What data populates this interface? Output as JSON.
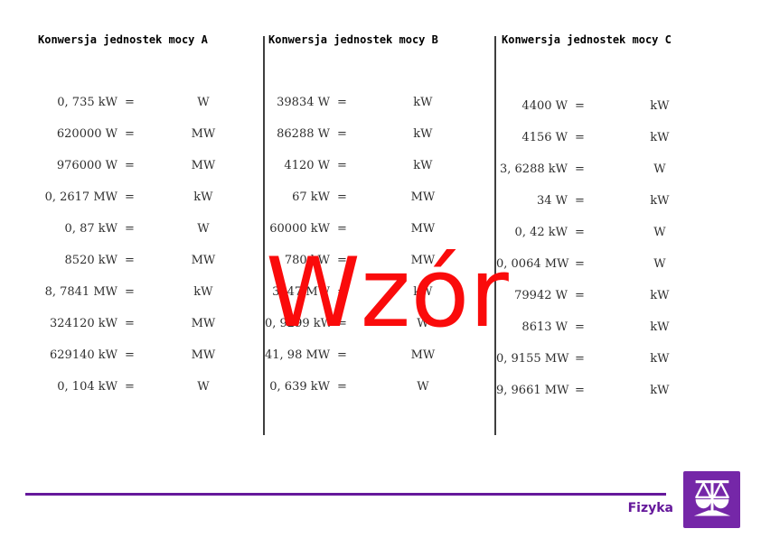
{
  "watermark": {
    "text": "Wzór",
    "color": "#fa0b0b"
  },
  "equals_sign": "=",
  "columns": [
    {
      "title": "Konwersja jednostek mocy A",
      "rows": [
        {
          "value": "0, 735 kW",
          "unit": "W"
        },
        {
          "value": "620000 W",
          "unit": "MW"
        },
        {
          "value": "976000 W",
          "unit": "MW"
        },
        {
          "value": "0, 2617 MW",
          "unit": "kW"
        },
        {
          "value": "0, 87 kW",
          "unit": "W"
        },
        {
          "value": "8520 kW",
          "unit": "MW"
        },
        {
          "value": "8, 7841 MW",
          "unit": "kW"
        },
        {
          "value": "324120 kW",
          "unit": "MW"
        },
        {
          "value": "629140 kW",
          "unit": "MW"
        },
        {
          "value": "0, 104 kW",
          "unit": "W"
        }
      ]
    },
    {
      "title": "Konwersja jednostek mocy B",
      "rows": [
        {
          "value": "39834 W",
          "unit": "kW"
        },
        {
          "value": "86288 W",
          "unit": "kW"
        },
        {
          "value": "4120 W",
          "unit": "kW"
        },
        {
          "value": "67 kW",
          "unit": "MW"
        },
        {
          "value": "60000 kW",
          "unit": "MW"
        },
        {
          "value": "780 kW",
          "unit": "MW"
        },
        {
          "value": "3, 47 MW",
          "unit": "kW"
        },
        {
          "value": "0, 9299 kW",
          "unit": "W"
        },
        {
          "value": "41, 98 MW",
          "unit": "MW"
        },
        {
          "value": "0, 639 kW",
          "unit": "W"
        }
      ]
    },
    {
      "title": "Konwersja jednostek mocy C",
      "rows": [
        {
          "value": "4400 W",
          "unit": "kW"
        },
        {
          "value": "4156 W",
          "unit": "kW"
        },
        {
          "value": "3, 6288 kW",
          "unit": "W"
        },
        {
          "value": "34 W",
          "unit": "kW"
        },
        {
          "value": "0, 42 kW",
          "unit": "W"
        },
        {
          "value": "0, 0064 MW",
          "unit": "W"
        },
        {
          "value": "79942 W",
          "unit": "kW"
        },
        {
          "value": "8613 W",
          "unit": "kW"
        },
        {
          "value": "0, 9155 MW",
          "unit": "kW"
        },
        {
          "value": "9, 9661 MW",
          "unit": "kW"
        }
      ]
    }
  ],
  "footer": {
    "subject_label": "Fizyka",
    "icon": "scales-icon",
    "accent_color": "#65189b",
    "icon_bg_color": "#7527a8"
  }
}
